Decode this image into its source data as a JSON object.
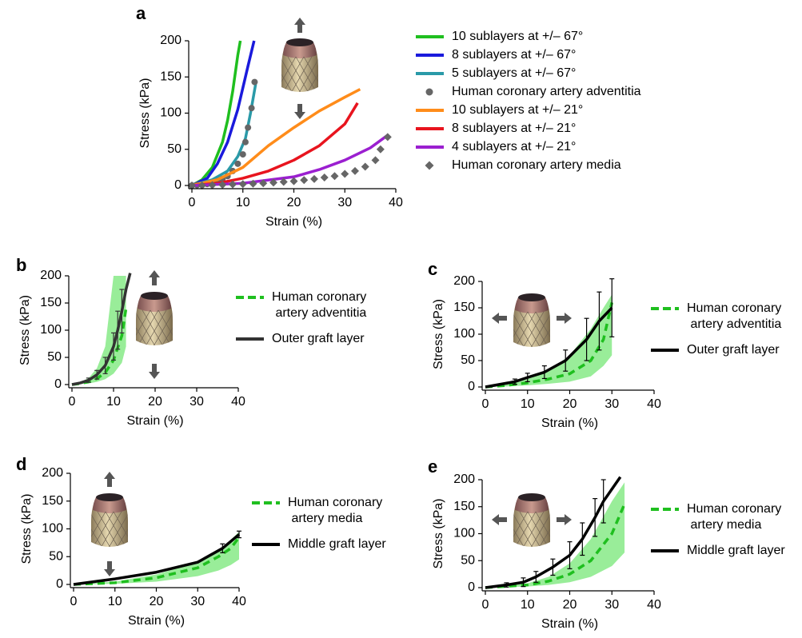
{
  "chart_data": [
    {
      "type": "line",
      "panel": "a",
      "xlabel": "Strain (%)",
      "ylabel": "Stress (kPa)",
      "xlim": [
        0,
        40
      ],
      "ylim": [
        0,
        200
      ],
      "xticks": [
        0,
        10,
        20,
        30,
        40
      ],
      "yticks": [
        0,
        50,
        100,
        150,
        200
      ],
      "series": [
        {
          "name": "10 sublayers at +/– 67°",
          "color": "#1fbf1f",
          "style": "solid",
          "x": [
            0,
            2,
            4,
            6,
            7,
            8,
            9,
            9.5
          ],
          "values": [
            0,
            8,
            25,
            60,
            90,
            130,
            180,
            200
          ]
        },
        {
          "name": "8 sublayers at +/– 67°",
          "color": "#1a1adc",
          "style": "solid",
          "x": [
            0,
            3,
            5,
            7,
            9,
            10,
            11,
            12.2
          ],
          "values": [
            0,
            10,
            30,
            60,
            105,
            135,
            165,
            200
          ]
        },
        {
          "name": "5 sublayers at +/– 67°",
          "color": "#2a9aa8",
          "style": "solid",
          "x": [
            0,
            4,
            7,
            9,
            10.5,
            11.5,
            12.5
          ],
          "values": [
            0,
            8,
            20,
            40,
            65,
            100,
            140
          ]
        },
        {
          "name": "Human coronary artery adventitia",
          "color": "#666666",
          "marker": "circle",
          "x": [
            0,
            1,
            2,
            3,
            4,
            5,
            6,
            7,
            8,
            9,
            10,
            10.5,
            11,
            11.7,
            12.3
          ],
          "values": [
            0,
            0.5,
            1,
            2,
            4,
            6,
            9,
            13,
            20,
            30,
            43,
            60,
            80,
            107,
            143
          ]
        },
        {
          "name": "10 sublayers at +/– 21°",
          "color": "#ff8c1a",
          "style": "solid",
          "x": [
            0,
            5,
            10,
            15,
            20,
            25,
            30,
            33
          ],
          "values": [
            0,
            8,
            25,
            55,
            80,
            103,
            122,
            133
          ]
        },
        {
          "name": "8 sublayers at +/– 21°",
          "color": "#e8141e",
          "style": "solid",
          "x": [
            0,
            5,
            10,
            15,
            20,
            25,
            30,
            32.5
          ],
          "values": [
            0,
            3,
            10,
            20,
            35,
            55,
            85,
            114
          ]
        },
        {
          "name": "4 sublayers at +/– 21°",
          "color": "#9b1fd0",
          "style": "solid",
          "x": [
            0,
            10,
            20,
            25,
            30,
            35,
            38.5
          ],
          "values": [
            0,
            3,
            12,
            22,
            35,
            52,
            70
          ]
        },
        {
          "name": "Human coronary artery media",
          "color": "#666666",
          "marker": "diamond",
          "x": [
            0,
            2,
            4,
            6,
            8,
            10,
            12,
            14,
            16,
            18,
            20,
            22,
            24,
            26,
            28,
            30,
            32,
            34,
            36,
            37,
            38.4
          ],
          "values": [
            0,
            0,
            0.5,
            1,
            1.5,
            2,
            2.5,
            3,
            4,
            5,
            6,
            7.5,
            9,
            11,
            13,
            16,
            20,
            26,
            35,
            50,
            67
          ]
        }
      ]
    },
    {
      "type": "line",
      "panel": "b",
      "xlabel": "Strain (%)",
      "ylabel": "Stress (kPa)",
      "xlim": [
        0,
        40
      ],
      "ylim": [
        0,
        200
      ],
      "xticks": [
        0,
        10,
        20,
        30,
        40
      ],
      "yticks": [
        0,
        50,
        100,
        150,
        200
      ],
      "series": [
        {
          "name": "Human coronary artery adventitia",
          "color": "#1fbf1f",
          "style": "dashed",
          "band_color": "#7fe87f",
          "x": [
            0,
            2,
            4,
            6,
            8,
            10,
            12,
            13
          ],
          "values": [
            0,
            2,
            5,
            11,
            22,
            45,
            90,
            140
          ],
          "lower": [
            0,
            1,
            2,
            5,
            10,
            20,
            40,
            70
          ],
          "upper": [
            0,
            4,
            12,
            30,
            70,
            200,
            200,
            200
          ]
        },
        {
          "name": "Outer graft layer",
          "color": "#333333",
          "style": "solid",
          "x": [
            0,
            2,
            4,
            6,
            8,
            10,
            11,
            12,
            13,
            14
          ],
          "values": [
            0,
            3,
            8,
            18,
            35,
            70,
            100,
            135,
            175,
            205
          ],
          "errors": [
            null,
            null,
            4,
            8,
            15,
            25,
            35,
            40,
            null,
            null
          ]
        }
      ]
    },
    {
      "type": "line",
      "panel": "c",
      "xlabel": "Strain (%)",
      "ylabel": "Stress (kPa)",
      "xlim": [
        0,
        40
      ],
      "ylim": [
        0,
        200
      ],
      "xticks": [
        0,
        10,
        20,
        30,
        40
      ],
      "yticks": [
        0,
        50,
        100,
        150,
        200
      ],
      "series": [
        {
          "name": "Human coronary artery adventitia",
          "color": "#1fbf1f",
          "style": "dashed",
          "band_color": "#7fe87f",
          "x": [
            0,
            5,
            10,
            15,
            20,
            25,
            28,
            30
          ],
          "values": [
            0,
            3,
            8,
            15,
            25,
            50,
            90,
            160
          ],
          "lower": [
            0,
            1,
            3,
            6,
            10,
            20,
            40,
            60
          ],
          "upper": [
            0,
            5,
            15,
            30,
            60,
            110,
            150,
            175
          ]
        },
        {
          "name": "Outer graft layer",
          "color": "#000000",
          "style": "solid",
          "x": [
            0,
            7,
            10,
            14,
            19,
            24,
            27,
            30
          ],
          "values": [
            0,
            10,
            18,
            28,
            50,
            90,
            125,
            150
          ],
          "errors": [
            null,
            5,
            8,
            12,
            20,
            40,
            55,
            55
          ]
        }
      ]
    },
    {
      "type": "line",
      "panel": "d",
      "xlabel": "Strain (%)",
      "ylabel": "Stress (kPa)",
      "xlim": [
        0,
        40
      ],
      "ylim": [
        0,
        200
      ],
      "xticks": [
        0,
        10,
        20,
        30,
        40
      ],
      "yticks": [
        0,
        50,
        100,
        150,
        200
      ],
      "series": [
        {
          "name": "Human coronary artery media",
          "color": "#1fbf1f",
          "style": "dashed",
          "band_color": "#7fe87f",
          "x": [
            0,
            10,
            20,
            30,
            35,
            38,
            40
          ],
          "values": [
            0,
            3,
            12,
            30,
            50,
            65,
            85
          ],
          "lower": [
            0,
            1,
            5,
            15,
            25,
            35,
            45
          ],
          "upper": [
            0,
            5,
            18,
            40,
            60,
            80,
            95
          ]
        },
        {
          "name": "Middle graft layer",
          "color": "#000000",
          "style": "solid",
          "x": [
            0,
            10,
            20,
            30,
            36,
            40
          ],
          "values": [
            0,
            10,
            22,
            40,
            65,
            90
          ],
          "errors": [
            null,
            null,
            null,
            null,
            8,
            6
          ]
        }
      ]
    },
    {
      "type": "line",
      "panel": "e",
      "xlabel": "Strain (%)",
      "ylabel": "Stress (kPa)",
      "xlim": [
        0,
        40
      ],
      "ylim": [
        0,
        200
      ],
      "xticks": [
        0,
        10,
        20,
        30,
        40
      ],
      "yticks": [
        0,
        50,
        100,
        150,
        200
      ],
      "series": [
        {
          "name": "Human coronary artery media",
          "color": "#1fbf1f",
          "style": "dashed",
          "band_color": "#7fe87f",
          "x": [
            0,
            10,
            15,
            20,
            25,
            30,
            33
          ],
          "values": [
            0,
            5,
            12,
            25,
            50,
            100,
            155
          ],
          "lower": [
            0,
            2,
            5,
            10,
            20,
            40,
            65
          ],
          "upper": [
            0,
            8,
            20,
            45,
            90,
            160,
            195
          ]
        },
        {
          "name": "Middle graft layer",
          "color": "#000000",
          "style": "solid",
          "x": [
            0,
            5,
            9,
            12,
            16,
            20,
            23,
            26,
            28,
            32
          ],
          "values": [
            0,
            5,
            10,
            20,
            38,
            60,
            90,
            130,
            160,
            205
          ],
          "errors": [
            null,
            4,
            8,
            10,
            15,
            25,
            30,
            35,
            40,
            null
          ]
        }
      ]
    }
  ]
}
